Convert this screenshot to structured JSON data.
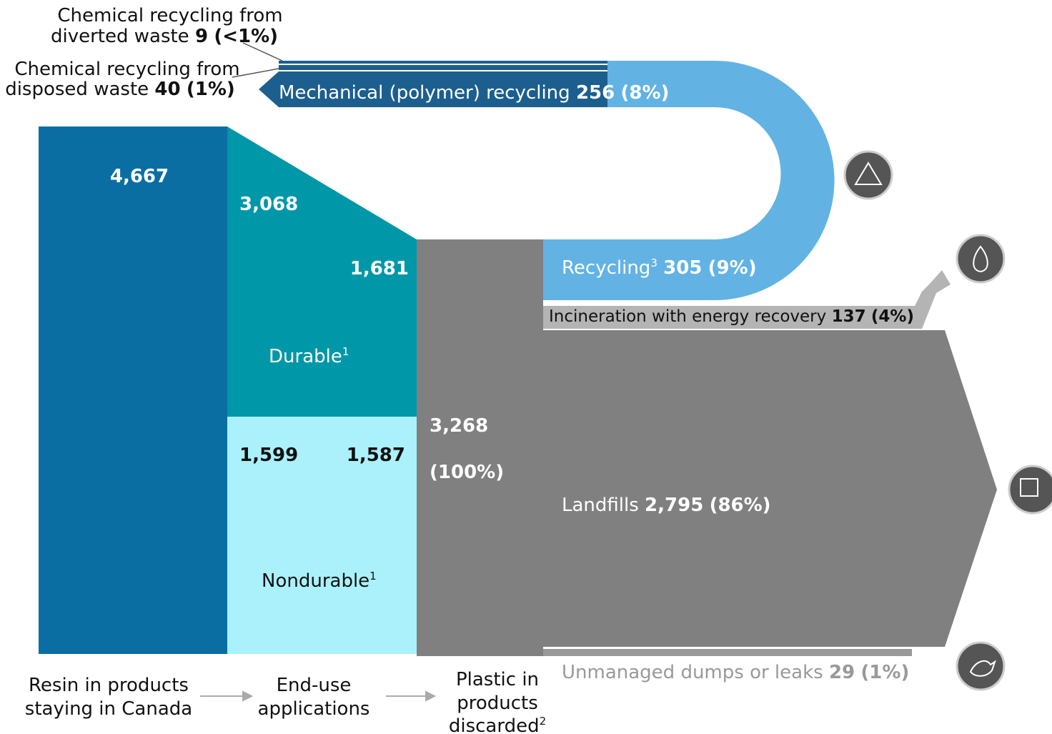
{
  "flows": {
    "chem_diverted": {
      "label_1": "Chemical recycling from",
      "label_2": "diverted waste",
      "value": "9",
      "share": "(<1%)"
    },
    "chem_disposed": {
      "label_1": "Chemical recycling from",
      "label_2": "disposed waste",
      "value": "40",
      "share": "(1%)"
    },
    "mechanical": {
      "label": "Mechanical (polymer) recycling",
      "value": "256",
      "share": "(8%)"
    },
    "recycling": {
      "label": "Recycling",
      "note": "3",
      "value": "305",
      "share": "(9%)"
    },
    "incineration": {
      "label": "Incineration with energy recovery",
      "value": "137",
      "share": "(4%)"
    },
    "landfills": {
      "label": "Landfills",
      "value": "2,795",
      "share": "(86%)"
    },
    "unmanaged": {
      "label": "Unmanaged dumps or leaks",
      "value": "29",
      "share": "(1%)"
    }
  },
  "nodes": {
    "resin": {
      "value": "4,667"
    },
    "durable": {
      "label": "Durable",
      "note": "1",
      "value_in": "3,068",
      "value_out": "1,681"
    },
    "nondurable": {
      "label": "Nondurable",
      "note": "1",
      "value_in": "1,599",
      "value_out": "1,587"
    },
    "discarded": {
      "value": "3,268",
      "share": "(100%)"
    }
  },
  "stages": [
    {
      "lines": [
        "Resin in products",
        "staying in Canada"
      ]
    },
    {
      "lines": [
        "End-use",
        "applications"
      ]
    },
    {
      "lines": [
        "Plastic in",
        "products",
        "discarded"
      ],
      "note": "2"
    }
  ]
}
